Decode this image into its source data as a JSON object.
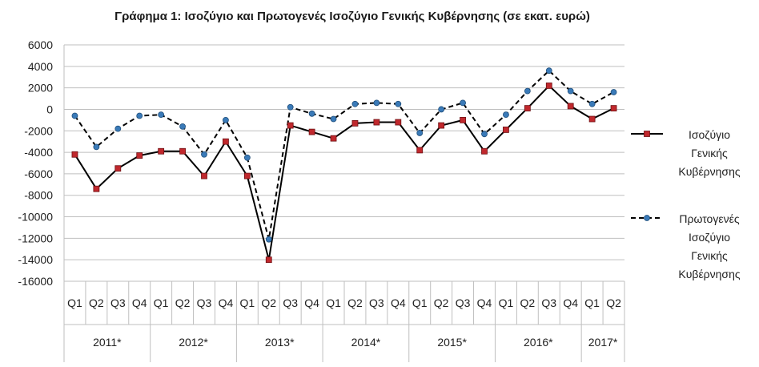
{
  "chart_data": {
    "type": "line",
    "title": "Γράφημα 1: Ισοζύγιο και Πρωτογενές Ισοζύγιο Γενικής Κυβέρνησης (σε εκατ. ευρώ)",
    "ylim": [
      -16000,
      6000
    ],
    "yticks": [
      "6000",
      "4000",
      "2000",
      "0",
      "-2000",
      "-4000",
      "-6000",
      "-8000",
      "-10000",
      "-12000",
      "-14000",
      "-16000"
    ],
    "ytick_values": [
      6000,
      4000,
      2000,
      0,
      -2000,
      -4000,
      -6000,
      -8000,
      -10000,
      -12000,
      -14000,
      -16000
    ],
    "quarters": [
      "Q1",
      "Q2",
      "Q3",
      "Q4",
      "Q1",
      "Q2",
      "Q3",
      "Q4",
      "Q1",
      "Q2",
      "Q3",
      "Q4",
      "Q1",
      "Q2",
      "Q3",
      "Q4",
      "Q1",
      "Q2",
      "Q3",
      "Q4",
      "Q1",
      "Q2",
      "Q3",
      "Q4",
      "Q1",
      "Q2"
    ],
    "years": [
      {
        "label": "2011*",
        "count": 4
      },
      {
        "label": "2012*",
        "count": 4
      },
      {
        "label": "2013*",
        "count": 4
      },
      {
        "label": "2014*",
        "count": 4
      },
      {
        "label": "2015*",
        "count": 4
      },
      {
        "label": "2016*",
        "count": 4
      },
      {
        "label": "2017*",
        "count": 2
      }
    ],
    "grid": true,
    "legend_position": "right",
    "series": [
      {
        "name": "Ισοζύγιο Γενικής Κυβέρνησης",
        "legend_lines": [
          "Ισοζύγιο",
          "Γενικής",
          "Κυβέρνησης"
        ],
        "style": "solid",
        "marker": "square",
        "values": [
          -4200,
          -7400,
          -5500,
          -4300,
          -3900,
          -3900,
          -6200,
          -3000,
          -6200,
          -14000,
          -1500,
          -2100,
          -2700,
          -1300,
          -1200,
          -1200,
          -3800,
          -1500,
          -1000,
          -3900,
          -1900,
          100,
          2200,
          300,
          -900,
          100
        ]
      },
      {
        "name": "Πρωτογενές Ισοζύγιο Γενικής Κυβέρνησης",
        "legend_lines": [
          "Πρωτογενές",
          "Ισοζύγιο",
          "Γενικής",
          "Κυβέρνησης"
        ],
        "style": "dashed",
        "marker": "circle",
        "values": [
          -600,
          -3500,
          -1800,
          -600,
          -500,
          -1600,
          -4200,
          -1000,
          -4500,
          -12100,
          200,
          -400,
          -900,
          500,
          600,
          500,
          -2200,
          0,
          600,
          -2300,
          -500,
          1700,
          3600,
          1700,
          500,
          1600
        ]
      }
    ]
  },
  "colors": {
    "marker_fill_primary": "#c0282d",
    "marker_fill_secondary": "#3a7ab8",
    "line": "#000000",
    "grid": "#bfbfbf"
  }
}
